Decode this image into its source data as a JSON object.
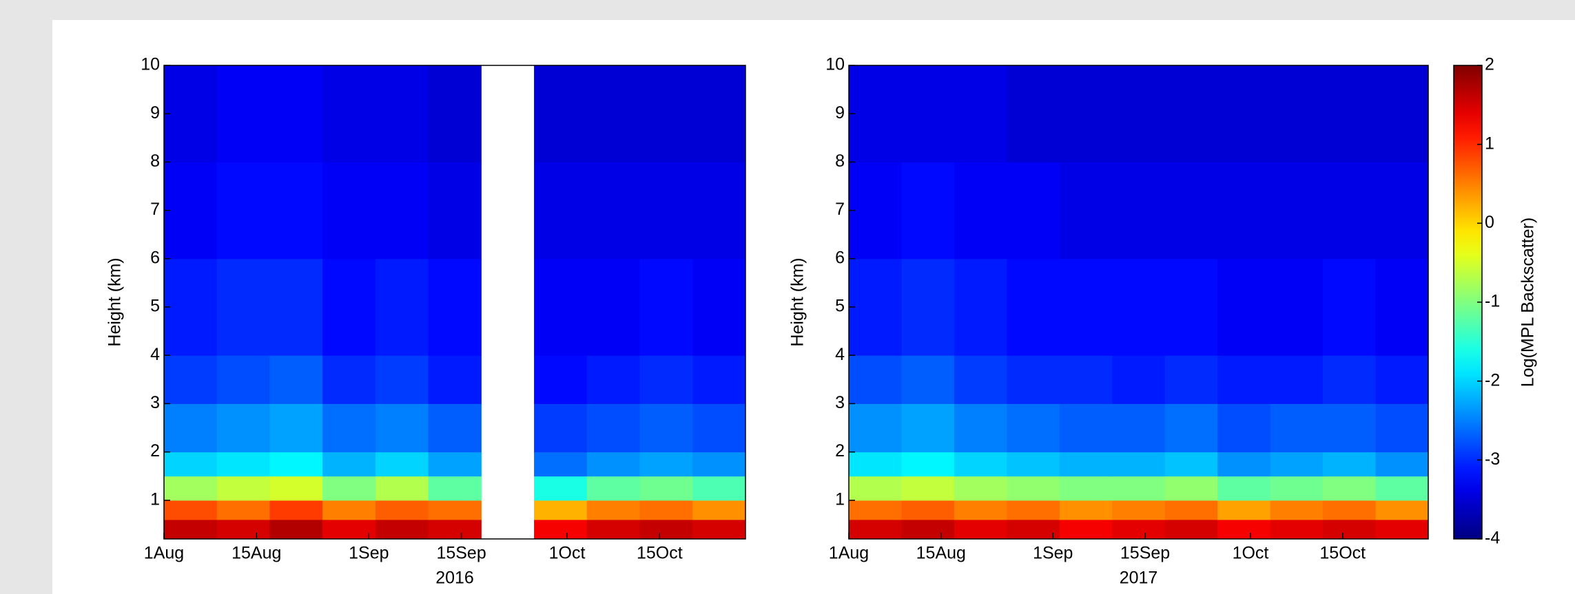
{
  "chart_data": [
    {
      "type": "heatmap",
      "ylabel": "Height (km)",
      "xlabel": "2016",
      "x": [
        "2016-08-01",
        "2016-08-09",
        "2016-08-17",
        "2016-08-25",
        "2016-09-02",
        "2016-09-10",
        "2016-09-18",
        "2016-09-26",
        "2016-10-04",
        "2016-10-12",
        "2016-10-20"
      ],
      "xlim": [
        "2016-08-01",
        "2016-10-28"
      ],
      "xticks": [
        {
          "value": "2016-08-01",
          "label": "1Aug"
        },
        {
          "value": "2016-08-15",
          "label": "15Aug"
        },
        {
          "value": "2016-09-01",
          "label": "1Sep"
        },
        {
          "value": "2016-09-15",
          "label": "15Sep"
        },
        {
          "value": "2016-10-01",
          "label": "1Oct"
        },
        {
          "value": "2016-10-15",
          "label": "15Oct"
        }
      ],
      "y": [
        0.2,
        0.6,
        1,
        1.5,
        2,
        3,
        4,
        6,
        8,
        10
      ],
      "ylim": [
        0.2,
        10
      ],
      "yticks": [
        1,
        2,
        3,
        4,
        5,
        6,
        7,
        8,
        9,
        10
      ],
      "z": [
        [
          1.6,
          1.5,
          1.7,
          1.4,
          1.6,
          1.5,
          null,
          1.3,
          1.5,
          1.6,
          1.5
        ],
        [
          0.8,
          0.6,
          0.9,
          0.5,
          0.7,
          0.6,
          null,
          0.2,
          0.5,
          0.6,
          0.4
        ],
        [
          -0.8,
          -0.6,
          -0.5,
          -1,
          -0.7,
          -1.2,
          null,
          -1.6,
          -1.2,
          -1.1,
          -1.3
        ],
        [
          -2,
          -1.9,
          -1.8,
          -2.2,
          -2,
          -2.3,
          null,
          -2.6,
          -2.4,
          -2.3,
          -2.4
        ],
        [
          -2.5,
          -2.4,
          -2.3,
          -2.6,
          -2.5,
          -2.7,
          null,
          -2.9,
          -2.8,
          -2.7,
          -2.8
        ],
        [
          -2.9,
          -2.8,
          -2.7,
          -3,
          -2.9,
          -3.1,
          null,
          -3.2,
          -3.1,
          -3,
          -3.1
        ],
        [
          -3.1,
          -3,
          -3,
          -3.2,
          -3.1,
          -3.2,
          null,
          -3.3,
          -3.3,
          -3.2,
          -3.3
        ],
        [
          -3.3,
          -3.2,
          -3.2,
          -3.3,
          -3.3,
          -3.4,
          null,
          -3.4,
          -3.4,
          -3.4,
          -3.4
        ],
        [
          -3.4,
          -3.3,
          -3.3,
          -3.4,
          -3.4,
          -3.5,
          null,
          -3.5,
          -3.5,
          -3.5,
          -3.5
        ]
      ]
    },
    {
      "type": "heatmap",
      "ylabel": "Height (km)",
      "xlabel": "2017",
      "x": [
        "2017-08-01",
        "2017-08-09",
        "2017-08-17",
        "2017-08-25",
        "2017-09-02",
        "2017-09-10",
        "2017-09-18",
        "2017-09-26",
        "2017-10-04",
        "2017-10-12",
        "2017-10-20"
      ],
      "xlim": [
        "2017-08-01",
        "2017-10-28"
      ],
      "xticks": [
        {
          "value": "2017-08-01",
          "label": "1Aug"
        },
        {
          "value": "2017-08-15",
          "label": "15Aug"
        },
        {
          "value": "2017-09-01",
          "label": "1Sep"
        },
        {
          "value": "2017-09-15",
          "label": "15Sep"
        },
        {
          "value": "2017-10-01",
          "label": "1Oct"
        },
        {
          "value": "2017-10-15",
          "label": "15Oct"
        }
      ],
      "y": [
        0.2,
        0.6,
        1,
        1.5,
        2,
        3,
        4,
        6,
        8,
        10
      ],
      "ylim": [
        0.2,
        10
      ],
      "yticks": [
        1,
        2,
        3,
        4,
        5,
        6,
        7,
        8,
        9,
        10
      ],
      "z": [
        [
          1.5,
          1.6,
          1.4,
          1.5,
          1.3,
          1.4,
          1.5,
          1.3,
          1.4,
          1.5,
          1.4
        ],
        [
          0.6,
          0.7,
          0.5,
          0.6,
          0.4,
          0.5,
          0.6,
          0.3,
          0.5,
          0.6,
          0.4
        ],
        [
          -0.7,
          -0.6,
          -0.8,
          -0.9,
          -1,
          -1,
          -0.9,
          -1.2,
          -1.1,
          -1,
          -1.2
        ],
        [
          -1.9,
          -1.8,
          -2,
          -2.1,
          -2.2,
          -2.2,
          -2.1,
          -2.4,
          -2.3,
          -2.2,
          -2.4
        ],
        [
          -2.4,
          -2.3,
          -2.5,
          -2.6,
          -2.7,
          -2.7,
          -2.6,
          -2.8,
          -2.7,
          -2.7,
          -2.8
        ],
        [
          -2.8,
          -2.7,
          -2.9,
          -3,
          -3,
          -3.1,
          -3,
          -3.1,
          -3.1,
          -3,
          -3.1
        ],
        [
          -3.1,
          -3,
          -3.1,
          -3.2,
          -3.2,
          -3.2,
          -3.2,
          -3.3,
          -3.3,
          -3.2,
          -3.3
        ],
        [
          -3.3,
          -3.2,
          -3.3,
          -3.3,
          -3.4,
          -3.4,
          -3.4,
          -3.4,
          -3.4,
          -3.4,
          -3.4
        ],
        [
          -3.4,
          -3.4,
          -3.4,
          -3.5,
          -3.5,
          -3.5,
          -3.5,
          -3.5,
          -3.5,
          -3.5,
          -3.5
        ]
      ],
      "clabel": "Log(MPL Backscatter)",
      "clim": [
        -4,
        2
      ],
      "cticks": [
        -4,
        -3,
        -2,
        -1,
        0,
        1,
        2
      ],
      "colormap": "jet"
    }
  ]
}
